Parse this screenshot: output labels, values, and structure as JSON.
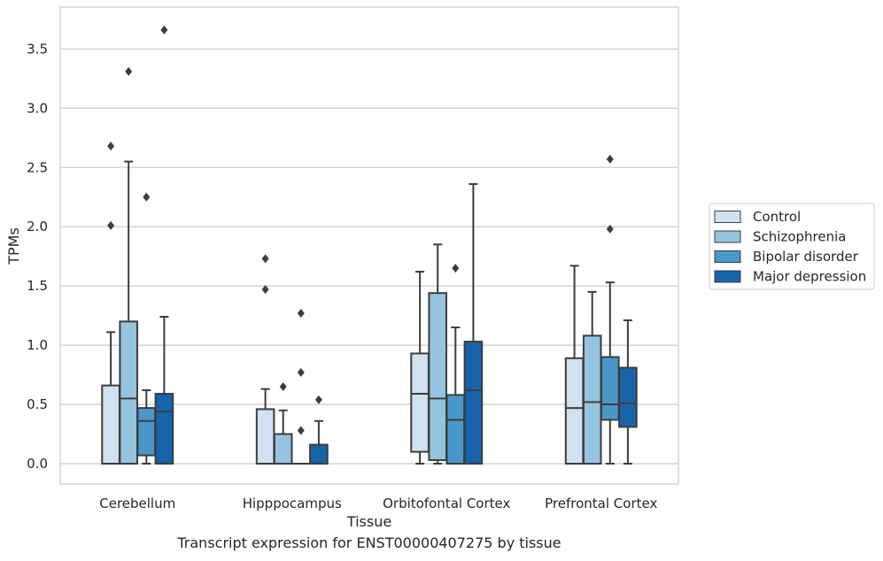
{
  "caption": "Transcript expression for ENST00000407275 by tissue",
  "chart_data": {
    "type": "box",
    "title": "",
    "xlabel": "Tissue",
    "ylabel": "TPMs",
    "ylim": [
      -0.18,
      3.85
    ],
    "yticks": [
      "0.0",
      "0.5",
      "1.0",
      "1.5",
      "2.0",
      "2.5",
      "3.0",
      "3.5"
    ],
    "grid": "horizontal",
    "legend_position": "right",
    "categories": [
      "Cerebellum",
      "Hipppocampus",
      "Orbitofontal Cortex",
      "Prefrontal Cortex"
    ],
    "series": [
      {
        "name": "Control",
        "color": "#d0e1f2",
        "boxes": [
          {
            "whislo": 0.0,
            "q1": 0.0,
            "med": 0.0,
            "q3": 0.66,
            "whishi": 1.11,
            "fliers": [
              2.01,
              2.68
            ]
          },
          {
            "whislo": 0.0,
            "q1": 0.0,
            "med": 0.0,
            "q3": 0.46,
            "whishi": 0.63,
            "fliers": [
              1.47,
              1.73
            ]
          },
          {
            "whislo": 0.0,
            "q1": 0.1,
            "med": 0.59,
            "q3": 0.93,
            "whishi": 1.62,
            "fliers": []
          },
          {
            "whislo": 0.0,
            "q1": 0.0,
            "med": 0.47,
            "q3": 0.89,
            "whishi": 1.67,
            "fliers": []
          }
        ]
      },
      {
        "name": "Schizophrenia",
        "color": "#94c4df",
        "boxes": [
          {
            "whislo": 0.0,
            "q1": 0.0,
            "med": 0.55,
            "q3": 1.2,
            "whishi": 2.55,
            "fliers": [
              3.31
            ]
          },
          {
            "whislo": 0.0,
            "q1": 0.0,
            "med": 0.0,
            "q3": 0.25,
            "whishi": 0.45,
            "fliers": [
              0.65
            ]
          },
          {
            "whislo": 0.0,
            "q1": 0.03,
            "med": 0.55,
            "q3": 1.44,
            "whishi": 1.85,
            "fliers": []
          },
          {
            "whislo": 0.0,
            "q1": 0.0,
            "med": 0.52,
            "q3": 1.08,
            "whishi": 1.45,
            "fliers": []
          }
        ]
      },
      {
        "name": "Bipolar disorder",
        "color": "#4a98c9",
        "boxes": [
          {
            "whislo": 0.0,
            "q1": 0.07,
            "med": 0.36,
            "q3": 0.47,
            "whishi": 0.62,
            "fliers": [
              2.25
            ]
          },
          {
            "whislo": 0.0,
            "q1": 0.0,
            "med": 0.0,
            "q3": 0.0,
            "whishi": 0.0,
            "fliers": [
              0.28,
              0.77,
              1.27
            ]
          },
          {
            "whislo": 0.0,
            "q1": 0.0,
            "med": 0.37,
            "q3": 0.58,
            "whishi": 1.15,
            "fliers": [
              1.65
            ]
          },
          {
            "whislo": 0.0,
            "q1": 0.37,
            "med": 0.5,
            "q3": 0.9,
            "whishi": 1.53,
            "fliers": [
              1.98,
              2.57
            ]
          }
        ]
      },
      {
        "name": "Major depression",
        "color": "#1764ab",
        "boxes": [
          {
            "whislo": 0.0,
            "q1": 0.0,
            "med": 0.44,
            "q3": 0.59,
            "whishi": 1.24,
            "fliers": [
              3.66
            ]
          },
          {
            "whislo": 0.0,
            "q1": 0.0,
            "med": 0.0,
            "q3": 0.16,
            "whishi": 0.36,
            "fliers": [
              0.54
            ]
          },
          {
            "whislo": 0.0,
            "q1": 0.0,
            "med": 0.62,
            "q3": 1.03,
            "whishi": 2.36,
            "fliers": []
          },
          {
            "whislo": 0.0,
            "q1": 0.31,
            "med": 0.51,
            "q3": 0.81,
            "whishi": 1.21,
            "fliers": []
          }
        ]
      }
    ]
  }
}
